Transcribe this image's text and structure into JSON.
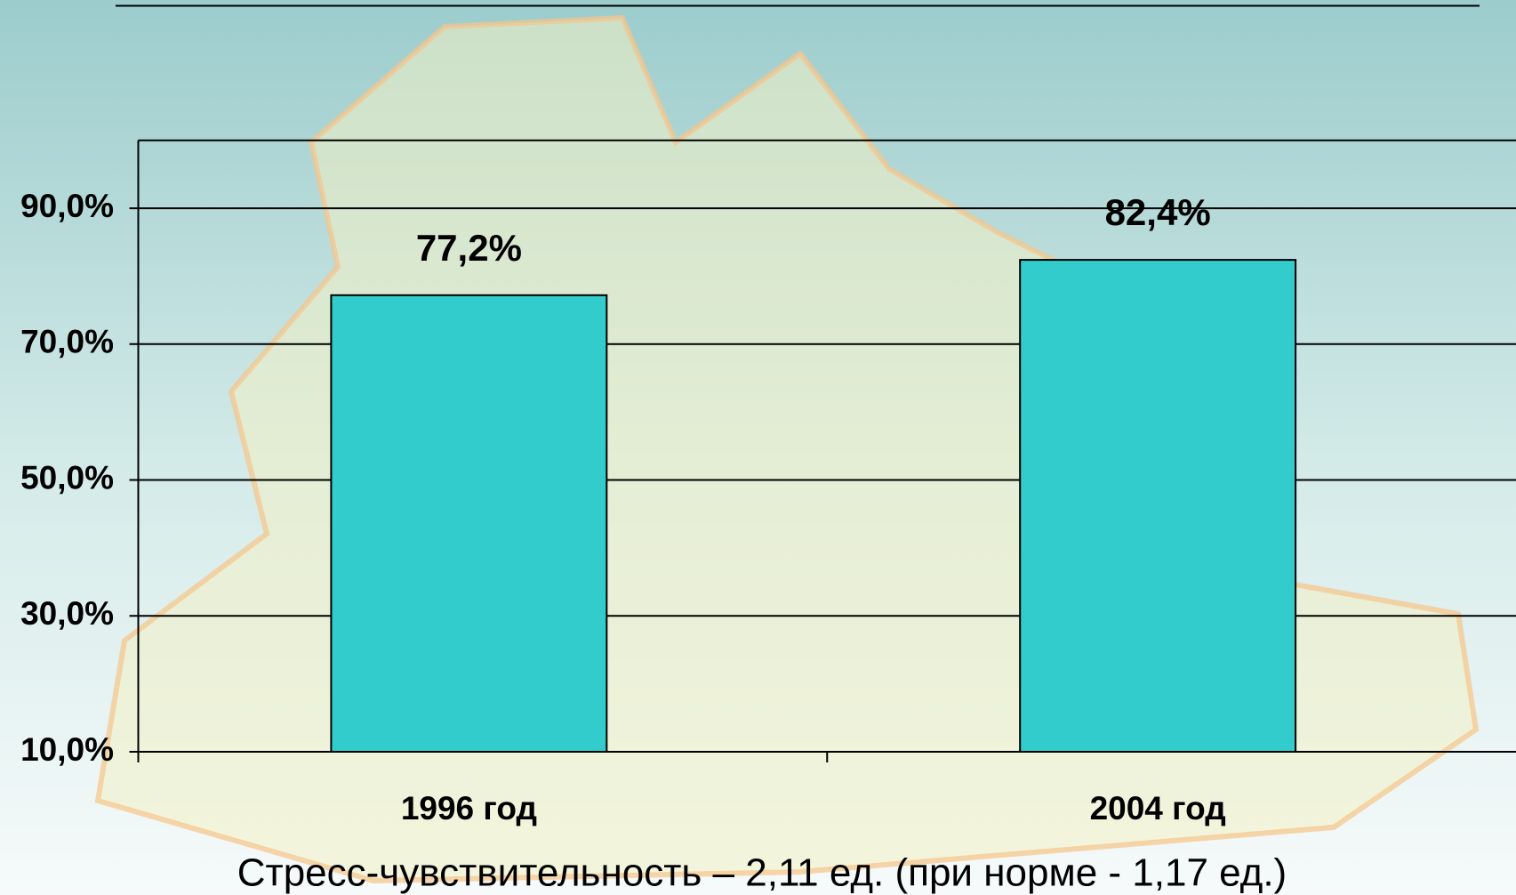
{
  "chart_data": {
    "type": "bar",
    "categories": [
      "1996 год",
      "2004 год"
    ],
    "values": [
      77.2,
      82.4
    ],
    "value_labels": [
      "77,2%",
      "82,4%"
    ],
    "color": "#33cccc",
    "ylim": [
      10,
      100
    ],
    "yticks": [
      {
        "value": 10,
        "label": "10,0%"
      },
      {
        "value": 30,
        "label": "30,0%"
      },
      {
        "value": 50,
        "label": "50,0%"
      },
      {
        "value": 70,
        "label": "70,0%"
      },
      {
        "value": 90,
        "label": "90,0%"
      }
    ],
    "grid": true,
    "caption": "Стресс-чувствительность – 2,11 ед. (при норме  - 1,17 ед.)"
  }
}
